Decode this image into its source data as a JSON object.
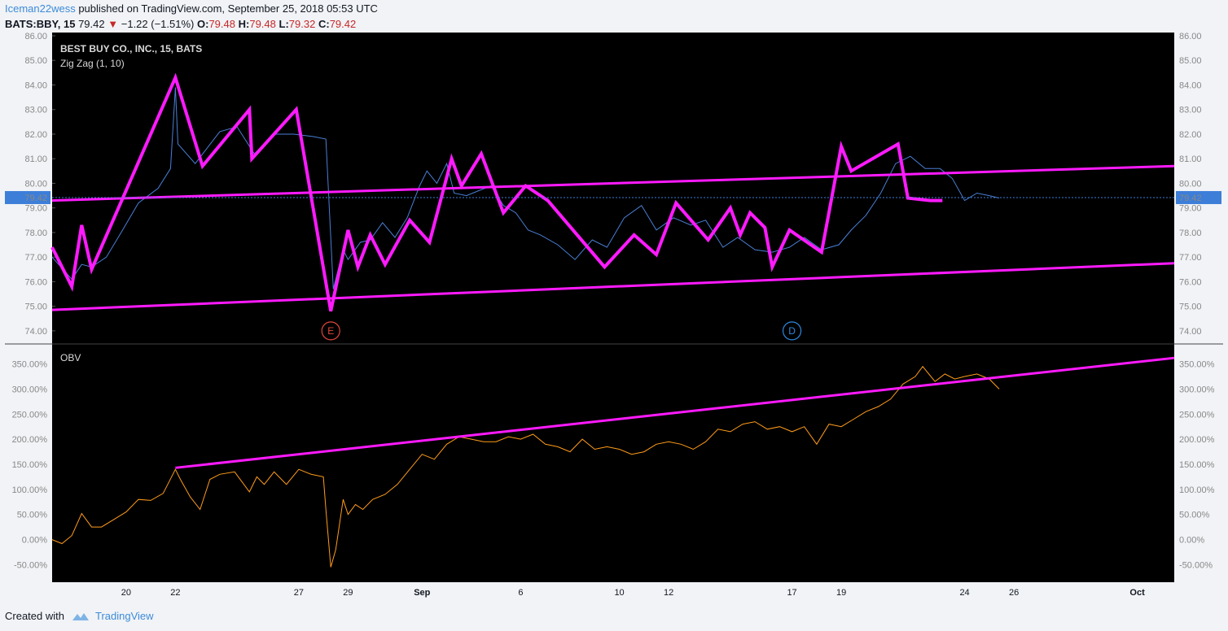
{
  "header": {
    "author": "Iceman22wess",
    "published": " published on TradingView.com, September 25, 2018 05:53 UTC",
    "symbol": "BATS:BBY, 15",
    "last": "79.42",
    "down_arrow": "▼",
    "change": "−1.22 (−1.51%)",
    "o_label": "O:",
    "o_value": "79.48",
    "h_label": "H:",
    "h_value": "79.48",
    "l_label": "L:",
    "l_value": "79.32",
    "c_label": "C:",
    "c_value": "79.42"
  },
  "footer": {
    "created_with": "Created with",
    "brand": "TradingView"
  },
  "colors": {
    "background": "#000000",
    "price_line": "#4a7fd6",
    "zigzag": "#ff1aff",
    "trendline": "#ff1aff",
    "obv_line": "#ff9c1a",
    "last_price_tag": "#3d7ed8",
    "earnings_badge": "#e0473c",
    "dividend_badge": "#2f87e0"
  },
  "chart_data": [
    {
      "type": "line",
      "title": "BEST BUY CO., INC., 15, BATS",
      "indicator": "Zig Zag (1, 10)",
      "last_price": 79.42,
      "last_price_label": "79.42",
      "ylim": [
        73.5,
        86.0
      ],
      "y_ticks": [
        "74.00",
        "75.00",
        "76.00",
        "77.00",
        "78.00",
        "79.00",
        "80.00",
        "81.00",
        "82.00",
        "83.00",
        "84.00",
        "85.00",
        "86.00"
      ],
      "x_ticks": [
        "20",
        "22",
        "27",
        "29",
        "Sep",
        "6",
        "10",
        "12",
        "17",
        "19",
        "24",
        "26",
        "Oct"
      ],
      "x_tick_days": [
        20,
        22,
        27,
        29,
        32,
        36,
        40,
        42,
        47,
        49,
        54,
        56,
        61
      ],
      "x_range_days": [
        17,
        62.5
      ],
      "series": [
        {
          "kind": "price",
          "x": [
            17.0,
            17.8,
            18.2,
            18.6,
            19.2,
            19.8,
            20.5,
            21.3,
            21.8,
            22.0,
            22.1,
            22.8,
            23.8,
            24.5,
            25.2,
            26.0,
            26.8,
            27.6,
            28.1,
            28.4,
            28.8,
            29.0,
            29.5,
            29.9,
            30.4,
            30.9,
            31.4,
            31.9,
            32.2,
            32.6,
            33.0,
            33.3,
            33.8,
            34.3,
            34.8,
            35.3,
            35.8,
            36.3,
            36.8,
            37.5,
            38.2,
            38.9,
            39.5,
            40.2,
            40.9,
            41.5,
            42.2,
            42.9,
            43.5,
            44.2,
            44.8,
            45.5,
            46.2,
            46.9,
            47.5,
            48.2,
            48.9,
            49.4,
            50.0,
            50.6,
            51.2,
            51.8,
            52.4,
            53.0,
            53.5,
            54.0,
            54.5,
            55.0,
            55.4
          ],
          "y": [
            77.0,
            76.1,
            76.7,
            76.6,
            77.0,
            78.0,
            79.2,
            79.8,
            80.6,
            83.9,
            81.6,
            80.8,
            82.1,
            82.3,
            81.2,
            82.0,
            82.0,
            81.9,
            81.8,
            75.7,
            77.3,
            76.9,
            77.6,
            77.7,
            78.4,
            77.8,
            78.6,
            79.9,
            80.5,
            80.0,
            80.8,
            79.6,
            79.5,
            79.7,
            79.9,
            79.1,
            78.8,
            78.1,
            77.9,
            77.5,
            76.9,
            77.7,
            77.4,
            78.6,
            79.1,
            78.1,
            78.6,
            78.3,
            78.5,
            77.4,
            77.8,
            77.3,
            77.2,
            77.4,
            77.8,
            77.3,
            77.5,
            78.1,
            78.7,
            79.6,
            80.8,
            81.1,
            80.6,
            80.6,
            80.2,
            79.3,
            79.6,
            79.5,
            79.4
          ]
        },
        {
          "kind": "zigzag",
          "x": [
            17.0,
            17.8,
            18.2,
            18.6,
            22.0,
            23.1,
            25.0,
            25.1,
            26.9,
            28.3,
            29.0,
            29.4,
            29.9,
            30.5,
            31.5,
            32.3,
            33.2,
            33.6,
            34.4,
            35.3,
            36.2,
            37.1,
            39.4,
            40.6,
            41.5,
            42.3,
            43.6,
            44.5,
            44.9,
            45.3,
            45.9,
            46.2,
            46.9,
            48.2,
            49.0,
            49.4,
            51.3,
            51.7,
            52.6,
            53.1
          ],
          "y": [
            77.4,
            75.8,
            78.3,
            76.5,
            84.3,
            80.7,
            83.0,
            81.0,
            83.0,
            74.8,
            78.1,
            76.6,
            77.9,
            76.7,
            78.5,
            77.6,
            81.0,
            79.9,
            81.2,
            78.8,
            79.9,
            79.3,
            76.6,
            77.9,
            77.1,
            79.2,
            77.7,
            79.0,
            77.9,
            78.8,
            78.2,
            76.6,
            78.1,
            77.2,
            81.5,
            80.5,
            81.6,
            79.4,
            79.3,
            79.3
          ]
        },
        {
          "kind": "trendline",
          "name": "upper",
          "x": [
            17.0,
            62.5
          ],
          "y": [
            79.3,
            80.7
          ]
        },
        {
          "kind": "trendline",
          "name": "lower",
          "x": [
            17.0,
            62.5
          ],
          "y": [
            74.85,
            76.75
          ]
        }
      ],
      "events": [
        {
          "label": "E",
          "x": 28.3,
          "kind": "earnings"
        },
        {
          "label": "D",
          "x": 47.0,
          "kind": "dividend"
        }
      ]
    },
    {
      "type": "line",
      "title": "OBV",
      "ylim": [
        -85,
        385
      ],
      "y_ticks": [
        "-50.00%",
        "0.00%",
        "50.00%",
        "100.00%",
        "150.00%",
        "200.00%",
        "250.00%",
        "300.00%",
        "350.00%"
      ],
      "series": [
        {
          "kind": "obv",
          "x": [
            17.0,
            17.4,
            17.8,
            18.2,
            18.6,
            19.0,
            19.5,
            20.0,
            20.5,
            21.0,
            21.5,
            22.0,
            22.2,
            22.6,
            23.0,
            23.4,
            23.8,
            24.4,
            25.0,
            25.3,
            25.6,
            26.0,
            26.5,
            27.0,
            27.5,
            28.0,
            28.1,
            28.3,
            28.5,
            28.8,
            29.0,
            29.3,
            29.6,
            30.0,
            30.5,
            31.0,
            31.5,
            32.0,
            32.5,
            33.0,
            33.5,
            34.0,
            34.5,
            35.0,
            35.5,
            36.0,
            36.5,
            37.0,
            37.5,
            38.0,
            38.5,
            39.0,
            39.5,
            40.0,
            40.5,
            41.0,
            41.5,
            42.0,
            42.5,
            43.0,
            43.5,
            44.0,
            44.5,
            45.0,
            45.5,
            46.0,
            46.5,
            47.0,
            47.5,
            48.0,
            48.5,
            49.0,
            49.5,
            50.0,
            50.5,
            51.0,
            51.5,
            52.0,
            52.3,
            52.8,
            53.2,
            53.6,
            54.0,
            54.5,
            55.0,
            55.4
          ],
          "y": [
            0,
            -8,
            8,
            52,
            25,
            25,
            40,
            55,
            80,
            78,
            92,
            140,
            120,
            85,
            60,
            120,
            130,
            135,
            95,
            125,
            110,
            135,
            110,
            140,
            130,
            125,
            60,
            -55,
            -20,
            80,
            50,
            70,
            60,
            80,
            90,
            110,
            140,
            170,
            160,
            190,
            205,
            200,
            195,
            195,
            205,
            200,
            210,
            190,
            185,
            175,
            200,
            180,
            185,
            180,
            170,
            175,
            190,
            195,
            190,
            180,
            195,
            220,
            215,
            230,
            235,
            220,
            225,
            215,
            225,
            190,
            230,
            225,
            240,
            255,
            265,
            280,
            310,
            325,
            345,
            315,
            330,
            320,
            325,
            330,
            320,
            300
          ]
        },
        {
          "kind": "trendline",
          "x": [
            22.0,
            62.5
          ],
          "y": [
            143,
            362
          ]
        }
      ]
    }
  ]
}
